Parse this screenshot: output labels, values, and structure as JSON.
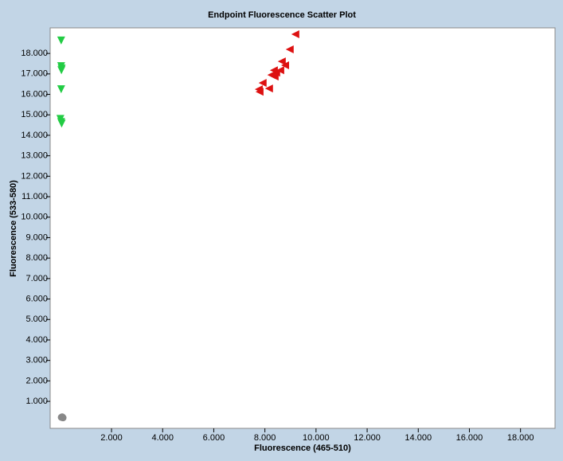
{
  "chart_data": {
    "type": "scatter",
    "title": "Endpoint Fluorescence Scatter Plot",
    "x_label": "Fluorescence (465-510)",
    "y_label": "Fluorescence (533-580)",
    "xlim": [
      -0.4,
      19.35
    ],
    "ylim": [
      -0.32,
      19.25
    ],
    "xticks": [
      {
        "value": 2,
        "label": "2.000"
      },
      {
        "value": 4,
        "label": "4.000"
      },
      {
        "value": 6,
        "label": "6.000"
      },
      {
        "value": 8,
        "label": "8.000"
      },
      {
        "value": 10,
        "label": "10.000"
      },
      {
        "value": 12,
        "label": "12.000"
      },
      {
        "value": 14,
        "label": "14.000"
      },
      {
        "value": 16,
        "label": "16.000"
      },
      {
        "value": 18,
        "label": "18.000"
      }
    ],
    "yticks": [
      {
        "value": 1,
        "label": "1.000"
      },
      {
        "value": 2,
        "label": "2.000"
      },
      {
        "value": 3,
        "label": "3.000"
      },
      {
        "value": 4,
        "label": "4.000"
      },
      {
        "value": 5,
        "label": "5.000"
      },
      {
        "value": 6,
        "label": "6.000"
      },
      {
        "value": 7,
        "label": "7.000"
      },
      {
        "value": 8,
        "label": "8.000"
      },
      {
        "value": 9,
        "label": "9.000"
      },
      {
        "value": 10,
        "label": "10.000"
      },
      {
        "value": 11,
        "label": "11.000"
      },
      {
        "value": 12,
        "label": "12.000"
      },
      {
        "value": 13,
        "label": "13.000"
      },
      {
        "value": 14,
        "label": "14.000"
      },
      {
        "value": 15,
        "label": "15.000"
      },
      {
        "value": 16,
        "label": "16.000"
      },
      {
        "value": 17,
        "label": "17.000"
      },
      {
        "value": 18,
        "label": "18.000"
      }
    ],
    "series": [
      {
        "color": "#22cc44",
        "marker": "triangle-down",
        "x": [
          0.03,
          0.03,
          0.05,
          0.04,
          0.03,
          0.0,
          0.03,
          0.05
        ],
        "y": [
          18.63,
          17.38,
          17.26,
          17.18,
          16.25,
          14.8,
          14.65,
          14.57
        ]
      },
      {
        "color": "#dd1111",
        "marker": "triangle-left",
        "x": [
          9.19,
          8.97,
          8.79,
          8.66,
          8.6,
          8.44,
          8.38,
          8.25,
          8.35,
          8.16,
          7.91,
          7.76,
          7.79
        ],
        "y": [
          18.94,
          18.2,
          17.42,
          17.61,
          17.18,
          17.06,
          16.87,
          16.95,
          17.18,
          16.29,
          16.56,
          16.25,
          16.13
        ]
      },
      {
        "color": "#888888",
        "marker": "circle",
        "x": [
          0.04,
          0.07,
          0.1
        ],
        "y": [
          0.22,
          0.24,
          0.2
        ]
      }
    ]
  }
}
